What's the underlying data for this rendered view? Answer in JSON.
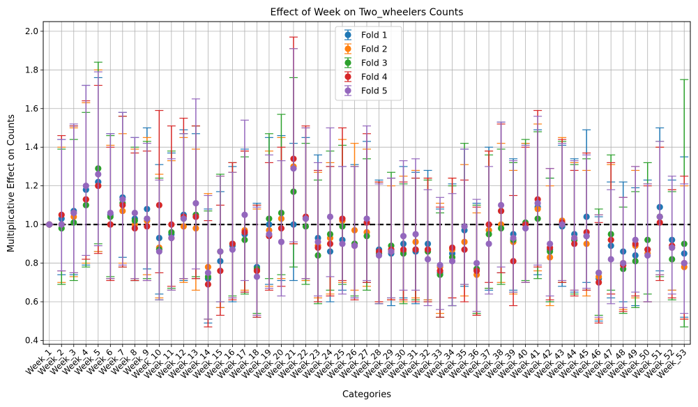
{
  "chart_data": {
    "type": "scatter",
    "title": "Effect of Week on Two_wheelers Counts",
    "xlabel": "Categories",
    "ylabel": "Multiplicative Effect on Counts",
    "ylim": [
      0.38,
      2.05
    ],
    "yticks": [
      "0.4",
      "0.6",
      "0.8",
      "1.0",
      "1.2",
      "1.4",
      "1.6",
      "1.8",
      "2.0"
    ],
    "grid": true,
    "legend_position": "top-center",
    "reference_line": 1.0,
    "categories": [
      "Week_1",
      "Week_2",
      "Week_3",
      "Week_4",
      "Week_5",
      "Week_6",
      "Week_7",
      "Week_8",
      "Week_9",
      "Week_10",
      "Week_11",
      "Week_12",
      "Week_13",
      "Week_14",
      "Week_15",
      "Week_16",
      "Week_17",
      "Week_18",
      "Week_19",
      "Week_20",
      "Week_21",
      "Week_22",
      "Week_23",
      "Week_24",
      "Week_25",
      "Week_26",
      "Week_27",
      "Week_28",
      "Week_29",
      "Week_30",
      "Week_31",
      "Week_32",
      "Week_33",
      "Week_34",
      "Week_35",
      "Week_36",
      "Week_37",
      "Week_38",
      "Week_39",
      "Week_40",
      "Week_41",
      "Week_42",
      "Week_43",
      "Week_44",
      "Week_45",
      "Week_46",
      "Week_47",
      "Week_48",
      "Week_49",
      "Week_50",
      "Week_51",
      "Week_52",
      "Week_53"
    ],
    "series": [
      {
        "name": "Fold 1",
        "color": "#1f77b4",
        "values": [
          1.0,
          1.03,
          1.07,
          1.18,
          1.22,
          1.05,
          1.14,
          1.03,
          1.08,
          0.93,
          0.95,
          1.05,
          1.04,
          0.72,
          0.81,
          0.89,
          0.95,
          0.78,
          1.0,
          1.03,
          1.0,
          1.03,
          0.93,
          0.86,
          0.92,
          0.9,
          1.01,
          0.87,
          0.85,
          0.9,
          0.86,
          0.9,
          0.75,
          0.85,
          0.97,
          0.77,
          0.97,
          1.07,
          0.95,
          1.0,
          1.09,
          0.87,
          0.99,
          0.95,
          1.04,
          0.72,
          0.89,
          0.86,
          0.84,
          0.87,
          1.09,
          0.92,
          0.85
        ],
        "lower": [
          1.0,
          0.74,
          0.74,
          0.79,
          0.86,
          0.72,
          0.83,
          0.71,
          0.77,
          0.64,
          0.66,
          0.71,
          0.72,
          0.49,
          0.57,
          0.6,
          0.65,
          0.52,
          0.69,
          0.71,
          0.71,
          0.71,
          0.6,
          0.6,
          0.66,
          0.62,
          0.7,
          0.59,
          0.58,
          0.62,
          0.59,
          0.61,
          0.52,
          0.58,
          0.68,
          0.53,
          0.66,
          0.75,
          0.66,
          0.7,
          0.74,
          0.6,
          0.68,
          0.65,
          0.7,
          0.5,
          0.62,
          0.6,
          0.58,
          0.6,
          0.76,
          0.66,
          0.52
        ],
        "upper": [
          1.0,
          1.44,
          1.51,
          1.72,
          1.76,
          1.47,
          1.58,
          1.45,
          1.5,
          1.31,
          1.37,
          1.49,
          1.47,
          1.08,
          1.17,
          1.3,
          1.39,
          1.11,
          1.45,
          1.46,
          1.42,
          1.45,
          1.36,
          1.3,
          1.3,
          1.31,
          1.43,
          1.23,
          1.24,
          1.3,
          1.27,
          1.28,
          1.08,
          1.21,
          1.39,
          1.11,
          1.4,
          1.53,
          1.34,
          1.42,
          1.49,
          1.24,
          1.41,
          1.34,
          1.49,
          1.04,
          1.22,
          1.22,
          1.19,
          1.23,
          1.5,
          1.23,
          1.35
        ]
      },
      {
        "name": "Fold 2",
        "color": "#ff7f0e",
        "values": [
          1.0,
          1.0,
          1.04,
          1.13,
          1.2,
          1.0,
          1.07,
          1.0,
          1.02,
          0.88,
          0.93,
          0.99,
          0.98,
          0.78,
          0.86,
          0.9,
          0.97,
          0.76,
          0.97,
          1.03,
          1.3,
          1.03,
          0.89,
          0.93,
          1.02,
          0.97,
          0.96,
          0.85,
          0.86,
          0.86,
          0.91,
          0.87,
          0.78,
          0.87,
          0.91,
          0.74,
          0.97,
          1.0,
          0.91,
          1.0,
          1.08,
          0.83,
          1.02,
          0.93,
          0.9,
          0.73,
          0.92,
          0.8,
          0.89,
          0.85,
          1.04,
          0.88,
          0.78
        ],
        "lower": [
          1.0,
          0.7,
          0.73,
          0.8,
          0.86,
          0.72,
          0.8,
          0.72,
          0.74,
          0.62,
          0.66,
          0.7,
          0.66,
          0.51,
          0.57,
          0.62,
          0.66,
          0.53,
          0.68,
          0.72,
          0.9,
          0.71,
          0.62,
          0.64,
          0.7,
          0.66,
          0.68,
          0.6,
          0.61,
          0.6,
          0.62,
          0.61,
          0.54,
          0.62,
          0.63,
          0.53,
          0.67,
          0.7,
          0.64,
          0.7,
          0.76,
          0.58,
          0.71,
          0.66,
          0.63,
          0.51,
          0.64,
          0.56,
          0.62,
          0.6,
          0.74,
          0.66,
          0.51
        ],
        "upper": [
          1.0,
          1.4,
          1.5,
          1.63,
          1.8,
          1.41,
          1.47,
          1.39,
          1.45,
          1.26,
          1.33,
          1.45,
          1.39,
          1.16,
          1.25,
          1.27,
          1.38,
          1.08,
          1.38,
          1.45,
          1.91,
          1.5,
          1.27,
          1.32,
          1.44,
          1.42,
          1.39,
          1.22,
          1.2,
          1.25,
          1.28,
          1.24,
          1.11,
          1.24,
          1.31,
          1.06,
          1.38,
          1.42,
          1.28,
          1.42,
          1.52,
          1.2,
          1.45,
          1.32,
          1.28,
          1.05,
          1.31,
          1.14,
          1.28,
          1.21,
          1.4,
          1.18,
          1.2
        ]
      },
      {
        "name": "Fold 3",
        "color": "#2ca02c",
        "values": [
          1.0,
          0.98,
          1.01,
          1.1,
          1.29,
          1.04,
          1.11,
          1.02,
          1.03,
          0.87,
          0.96,
          1.03,
          1.05,
          0.73,
          0.86,
          0.9,
          0.92,
          0.77,
          1.03,
          1.06,
          1.17,
          0.99,
          0.84,
          0.95,
          0.99,
          0.9,
          0.94,
          0.85,
          0.89,
          0.85,
          0.87,
          0.86,
          0.74,
          0.83,
          0.99,
          0.77,
          0.95,
          0.98,
          0.92,
          1.01,
          1.03,
          0.86,
          1.0,
          0.92,
          0.94,
          0.75,
          0.95,
          0.77,
          0.81,
          0.92,
          1.04,
          0.82,
          0.9
        ],
        "lower": [
          1.0,
          0.69,
          0.71,
          0.78,
          0.9,
          0.73,
          0.78,
          0.71,
          0.72,
          0.61,
          0.67,
          0.72,
          0.73,
          0.51,
          0.6,
          0.63,
          0.64,
          0.54,
          0.72,
          0.74,
          0.78,
          0.69,
          0.59,
          0.66,
          0.69,
          0.63,
          0.66,
          0.59,
          0.62,
          0.59,
          0.61,
          0.6,
          0.52,
          0.58,
          0.69,
          0.54,
          0.67,
          0.69,
          0.65,
          0.71,
          0.72,
          0.6,
          0.7,
          0.64,
          0.66,
          0.53,
          0.66,
          0.54,
          0.57,
          0.64,
          0.73,
          0.61,
          0.47
        ],
        "upper": [
          1.0,
          1.39,
          1.44,
          1.58,
          1.84,
          1.46,
          1.56,
          1.4,
          1.43,
          1.24,
          1.38,
          1.47,
          1.51,
          1.07,
          1.26,
          1.32,
          1.35,
          1.1,
          1.47,
          1.57,
          1.76,
          1.42,
          1.23,
          1.38,
          1.41,
          1.3,
          1.34,
          1.22,
          1.27,
          1.21,
          1.24,
          1.23,
          1.06,
          1.2,
          1.42,
          1.1,
          1.36,
          1.39,
          1.32,
          1.44,
          1.48,
          1.24,
          1.43,
          1.31,
          1.34,
          1.08,
          1.36,
          1.09,
          1.17,
          1.32,
          1.43,
          1.17,
          1.75
        ]
      },
      {
        "name": "Fold 4",
        "color": "#d62728",
        "values": [
          1.0,
          1.05,
          1.06,
          1.13,
          1.2,
          1.0,
          1.1,
          0.98,
          0.99,
          1.1,
          1.0,
          1.04,
          1.04,
          0.69,
          0.76,
          0.9,
          0.96,
          0.76,
          0.94,
          0.98,
          1.34,
          1.04,
          0.88,
          0.9,
          1.03,
          0.89,
          1.01,
          0.86,
          0.87,
          0.87,
          0.87,
          0.87,
          0.76,
          0.88,
          0.87,
          0.76,
          1.0,
          1.07,
          0.81,
          1.0,
          1.13,
          0.88,
          1.01,
          0.9,
          0.96,
          0.7,
          0.92,
          0.79,
          0.9,
          0.87,
          1.01,
          0.89,
          0.8
        ],
        "lower": [
          1.0,
          0.76,
          0.75,
          0.82,
          0.85,
          0.71,
          0.78,
          0.71,
          0.71,
          0.75,
          0.68,
          0.72,
          0.72,
          0.47,
          0.53,
          0.61,
          0.65,
          0.52,
          0.66,
          0.68,
          0.9,
          0.72,
          0.6,
          0.63,
          0.71,
          0.61,
          0.7,
          0.6,
          0.61,
          0.61,
          0.6,
          0.6,
          0.52,
          0.62,
          0.6,
          0.53,
          0.7,
          0.75,
          0.58,
          0.7,
          0.78,
          0.61,
          0.7,
          0.63,
          0.66,
          0.49,
          0.64,
          0.55,
          0.63,
          0.6,
          0.71,
          0.62,
          0.51
        ],
        "upper": [
          1.0,
          1.46,
          1.51,
          1.64,
          1.72,
          1.4,
          1.56,
          1.37,
          1.38,
          1.59,
          1.51,
          1.55,
          1.51,
          1.02,
          1.1,
          1.32,
          1.38,
          1.1,
          1.32,
          1.4,
          1.97,
          1.51,
          1.28,
          1.3,
          1.5,
          1.3,
          1.47,
          1.22,
          1.24,
          1.22,
          1.24,
          1.24,
          1.09,
          1.24,
          1.23,
          1.09,
          1.38,
          1.52,
          1.15,
          1.4,
          1.59,
          1.29,
          1.44,
          1.28,
          1.37,
          1.01,
          1.32,
          1.14,
          1.3,
          1.2,
          1.4,
          1.18,
          1.25
        ]
      },
      {
        "name": "Fold 5",
        "color": "#9467bd",
        "values": [
          1.0,
          1.0,
          1.06,
          1.2,
          1.26,
          1.06,
          1.13,
          1.06,
          1.03,
          0.86,
          0.93,
          1.03,
          1.11,
          0.75,
          0.86,
          0.87,
          1.05,
          0.73,
          0.95,
          0.91,
          1.29,
          1.03,
          0.91,
          1.04,
          0.9,
          0.89,
          1.03,
          0.84,
          0.86,
          0.94,
          0.95,
          0.82,
          0.79,
          0.81,
          0.99,
          0.8,
          0.9,
          1.1,
          0.93,
          0.98,
          1.11,
          0.9,
          1.0,
          0.93,
          0.94,
          0.75,
          0.82,
          0.8,
          0.92,
          0.84,
          1.04,
          0.88,
          0.8
        ],
        "lower": [
          1.0,
          0.76,
          0.75,
          0.84,
          0.89,
          0.72,
          0.79,
          0.72,
          0.71,
          0.61,
          0.66,
          0.72,
          0.77,
          0.51,
          0.6,
          0.62,
          0.71,
          0.53,
          0.67,
          0.63,
          0.91,
          0.72,
          0.63,
          0.73,
          0.64,
          0.62,
          0.71,
          0.59,
          0.62,
          0.66,
          0.66,
          0.58,
          0.56,
          0.58,
          0.69,
          0.55,
          0.64,
          0.78,
          0.65,
          0.7,
          0.79,
          0.63,
          0.71,
          0.66,
          0.67,
          0.52,
          0.59,
          0.57,
          0.65,
          0.6,
          0.74,
          0.64,
          0.54
        ],
        "upper": [
          1.0,
          1.44,
          1.52,
          1.72,
          1.79,
          1.47,
          1.58,
          1.45,
          1.42,
          1.23,
          1.34,
          1.47,
          1.65,
          1.15,
          1.25,
          1.27,
          1.54,
          1.09,
          1.36,
          1.33,
          1.91,
          1.5,
          1.32,
          1.5,
          1.3,
          1.3,
          1.51,
          1.21,
          1.24,
          1.33,
          1.34,
          1.18,
          1.14,
          1.16,
          1.39,
          1.13,
          1.3,
          1.53,
          1.33,
          1.41,
          1.56,
          1.29,
          1.42,
          1.33,
          1.36,
          1.05,
          1.18,
          1.14,
          1.3,
          1.21,
          1.43,
          1.25,
          1.21
        ]
      }
    ]
  }
}
